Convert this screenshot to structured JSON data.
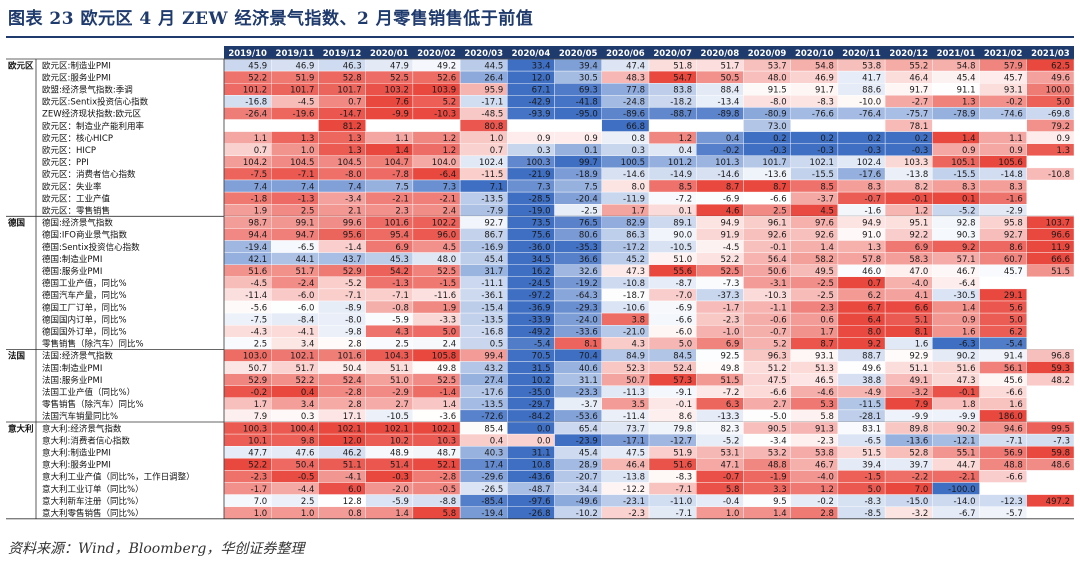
{
  "title": "图表 23   欧元区 4 月 ZEW 经济景气指数、2 月零售销售低于前值",
  "source": "资料来源：Wind，Bloomberg，华创证券整理",
  "colors": {
    "header": "#1f3a6d",
    "high": "#e9483f",
    "low": "#3f6fc3",
    "mid": "#ffffff"
  },
  "chart_data": {
    "type": "heatmap",
    "title": "欧元区 4 月 ZEW 经济景气指数、2 月零售销售低于前值",
    "columns": [
      "2019/10",
      "2019/11",
      "2019/12",
      "2020/01",
      "2020/02",
      "2020/03",
      "2020/04",
      "2020/05",
      "2020/06",
      "2020/07",
      "2020/08",
      "2020/09",
      "2020/10",
      "2020/11",
      "2020/12",
      "2021/01",
      "2021/02",
      "2021/03"
    ],
    "groups": [
      {
        "name": "欧元区",
        "rows": [
          {
            "label": "欧元区:制造业PMI",
            "values": [
              45.9,
              46.9,
              46.3,
              47.9,
              49.2,
              44.5,
              33.4,
              39.4,
              47.4,
              51.8,
              51.7,
              53.7,
              54.8,
              53.8,
              55.2,
              54.8,
              57.9,
              62.5
            ]
          },
          {
            "label": "欧元区:服务业PMI",
            "values": [
              52.2,
              51.9,
              52.8,
              52.5,
              52.6,
              26.4,
              12.0,
              30.5,
              48.3,
              54.7,
              50.5,
              48.0,
              46.9,
              41.7,
              46.4,
              45.4,
              45.7,
              49.6
            ]
          },
          {
            "label": "欧盟:经济景气指数:季调",
            "values": [
              101.2,
              101.7,
              101.7,
              103.2,
              103.9,
              95.9,
              67.1,
              69.3,
              77.8,
              83.8,
              88.4,
              91.5,
              91.7,
              88.6,
              91.7,
              91.1,
              93.1,
              100.0
            ]
          },
          {
            "label": "欧元区:Sentix投资信心指数",
            "values": [
              -16.8,
              -4.5,
              0.7,
              7.6,
              5.2,
              -17.1,
              -42.9,
              -41.8,
              -24.8,
              -18.2,
              -13.4,
              -8.0,
              -8.3,
              -10.0,
              -2.7,
              1.3,
              -0.2,
              5.0
            ]
          },
          {
            "label": "ZEW经济现状指数:欧元区",
            "values": [
              -26.4,
              -19.6,
              -14.7,
              -9.9,
              -10.3,
              -48.5,
              -93.9,
              -95.0,
              -89.6,
              -88.7,
              -89.8,
              -80.9,
              -76.6,
              -76.4,
              -75.7,
              -78.9,
              -74.6,
              -69.8
            ]
          },
          {
            "label": "欧元区：制造业产能利用率",
            "values": [
              null,
              null,
              81.2,
              null,
              null,
              80.8,
              null,
              null,
              66.8,
              null,
              null,
              73.0,
              null,
              null,
              78.1,
              null,
              null,
              79.2
            ]
          },
          {
            "label": "欧元区：核心HICP",
            "values": [
              1.1,
              1.3,
              1.3,
              1.1,
              1.2,
              1.0,
              0.9,
              0.9,
              0.8,
              1.2,
              0.4,
              0.2,
              0.2,
              0.2,
              0.2,
              1.4,
              1.1,
              0.9
            ]
          },
          {
            "label": "欧元区：HICP",
            "values": [
              0.7,
              1.0,
              1.3,
              1.4,
              1.2,
              0.7,
              0.3,
              0.1,
              0.3,
              0.4,
              -0.2,
              -0.3,
              -0.3,
              -0.3,
              -0.3,
              0.9,
              0.9,
              1.3
            ]
          },
          {
            "label": "欧元区：PPI",
            "values": [
              104.2,
              104.5,
              104.5,
              104.7,
              104.0,
              102.4,
              100.3,
              99.7,
              100.5,
              101.2,
              101.3,
              101.7,
              102.1,
              102.4,
              103.3,
              105.1,
              105.6,
              null
            ]
          },
          {
            "label": "欧元区：消费者信心指数",
            "values": [
              -7.5,
              -7.1,
              -8.0,
              -7.8,
              -6.4,
              -11.5,
              -21.9,
              -18.9,
              -14.6,
              -14.9,
              -14.6,
              -13.6,
              -15.5,
              -17.6,
              -13.8,
              -15.5,
              -14.8,
              -10.8
            ]
          },
          {
            "label": "欧元区：失业率",
            "values": [
              7.4,
              7.4,
              7.4,
              7.5,
              7.3,
              7.1,
              7.3,
              7.5,
              8.0,
              8.5,
              8.7,
              8.7,
              8.5,
              8.3,
              8.2,
              8.3,
              8.3,
              null
            ]
          },
          {
            "label": "欧元区：工业产值",
            "values": [
              -1.8,
              -1.3,
              -3.4,
              -2.1,
              -2.1,
              -13.5,
              -28.5,
              -20.4,
              -11.9,
              -7.2,
              -6.9,
              -6.6,
              -3.7,
              -0.7,
              -0.1,
              0.1,
              -1.6,
              null
            ]
          },
          {
            "label": "欧元区：零售销售",
            "values": [
              1.9,
              2.5,
              2.1,
              2.3,
              2.4,
              -7.9,
              -19.0,
              -2.5,
              1.7,
              0.1,
              4.6,
              2.5,
              4.5,
              -1.6,
              1.2,
              -5.2,
              -2.9,
              null
            ]
          }
        ]
      },
      {
        "name": "德国",
        "rows": [
          {
            "label": "德国:经济景气指数",
            "values": [
              98.7,
              99.1,
              99.6,
              101.6,
              102.2,
              92.7,
              73.5,
              76.5,
              82.9,
              89.1,
              94.9,
              96.1,
              97.6,
              94.9,
              95.1,
              92.8,
              95.8,
              103.7
            ]
          },
          {
            "label": "德国:IFO商业景气指数",
            "values": [
              94.4,
              94.7,
              95.6,
              95.4,
              96.0,
              86.7,
              75.6,
              80.6,
              86.3,
              90.0,
              91.9,
              92.6,
              92.6,
              91.0,
              92.2,
              90.3,
              92.7,
              96.6
            ]
          },
          {
            "label": "德国:Sentix投资信心指数",
            "values": [
              -19.4,
              -6.5,
              -1.4,
              6.9,
              4.5,
              -16.9,
              -36.0,
              -35.3,
              -17.2,
              -10.5,
              -4.5,
              -0.1,
              1.4,
              1.3,
              6.9,
              9.2,
              8.6,
              11.9
            ]
          },
          {
            "label": "德国:制造业PMI",
            "values": [
              42.1,
              44.1,
              43.7,
              45.3,
              48.0,
              45.4,
              34.5,
              36.6,
              45.2,
              51.0,
              52.2,
              56.4,
              58.2,
              57.8,
              58.3,
              57.1,
              60.7,
              66.6
            ]
          },
          {
            "label": "德国:服务业PMI",
            "values": [
              51.6,
              51.7,
              52.9,
              54.2,
              52.5,
              31.7,
              16.2,
              32.6,
              47.3,
              55.6,
              52.5,
              50.6,
              49.5,
              46.0,
              47.0,
              46.7,
              45.7,
              51.5
            ]
          },
          {
            "label": "德国工业产值，同比%",
            "values": [
              -4.5,
              -2.4,
              -5.2,
              -1.3,
              -1.5,
              -11.1,
              -24.5,
              -19.2,
              -10.8,
              -8.7,
              -7.3,
              -3.1,
              -2.5,
              0.7,
              -4.0,
              -6.4,
              null,
              null
            ]
          },
          {
            "label": "德国汽车产量，同比%",
            "values": [
              -11.4,
              -6.0,
              -7.1,
              -7.1,
              -11.6,
              -36.1,
              -97.2,
              -64.3,
              -18.7,
              -7.0,
              -37.3,
              -10.3,
              -2.5,
              6.2,
              4.1,
              -30.5,
              29.1,
              null
            ]
          },
          {
            "label": "德国工厂订单，同比%",
            "values": [
              -5.6,
              -6.0,
              -8.9,
              -0.8,
              1.9,
              -15.4,
              -36.9,
              -29.3,
              -10.6,
              -6.9,
              -1.7,
              -1.1,
              2.3,
              6.7,
              6.6,
              1.4,
              5.6,
              null
            ]
          },
          {
            "label": "德国国内订单，同比%",
            "values": [
              -7.5,
              -8.4,
              -8.0,
              -5.9,
              -3.3,
              -13.5,
              -33.9,
              -24.0,
              3.8,
              -6.6,
              -2.3,
              -0.6,
              0.6,
              6.4,
              5.1,
              0.9,
              5.0,
              null
            ]
          },
          {
            "label": "德国国外订单，同比%",
            "values": [
              -4.3,
              -4.1,
              -9.8,
              4.3,
              5.0,
              -16.8,
              -49.2,
              -33.6,
              -21.0,
              -6.0,
              -1.0,
              -0.7,
              1.7,
              8.0,
              8.1,
              1.6,
              6.2,
              null
            ]
          },
          {
            "label": "零售销售（除汽车）同比%",
            "values": [
              2.5,
              3.4,
              2.8,
              2.5,
              2.4,
              0.5,
              -5.4,
              8.1,
              4.3,
              5.0,
              6.9,
              5.2,
              8.7,
              9.2,
              1.6,
              -6.3,
              -5.4,
              null
            ]
          }
        ]
      },
      {
        "name": "法国",
        "rows": [
          {
            "label": "法国:经济景气指数",
            "values": [
              103.0,
              102.1,
              101.6,
              104.3,
              105.8,
              99.4,
              70.5,
              70.4,
              84.9,
              84.5,
              92.5,
              96.3,
              93.1,
              88.7,
              92.9,
              90.2,
              91.4,
              96.8
            ]
          },
          {
            "label": "法国:制造业PMI",
            "values": [
              50.7,
              51.7,
              50.4,
              51.1,
              49.8,
              43.2,
              31.5,
              40.6,
              52.3,
              52.4,
              49.8,
              51.2,
              51.3,
              49.6,
              51.1,
              51.6,
              56.1,
              59.3
            ]
          },
          {
            "label": "法国:服务业PMI",
            "values": [
              52.9,
              52.2,
              52.4,
              51.0,
              52.5,
              27.4,
              10.2,
              31.1,
              50.7,
              57.3,
              51.5,
              47.5,
              46.5,
              38.8,
              49.1,
              47.3,
              45.6,
              48.2
            ]
          },
          {
            "label": "法国工业产值（同比%）",
            "values": [
              -0.2,
              0.4,
              -2.8,
              -2.9,
              -1.4,
              -17.6,
              -35.0,
              -23.3,
              -11.3,
              -9.1,
              -7.2,
              -6.6,
              -4.6,
              -4.9,
              -3.2,
              -0.1,
              -6.6,
              null
            ]
          },
          {
            "label": "零售销售（除汽车）同比%",
            "values": [
              1.7,
              3.4,
              2.8,
              2.7,
              1.4,
              -13.5,
              -29.7,
              -3.7,
              3.5,
              -0.1,
              6.3,
              2.7,
              5.3,
              -11.5,
              7.9,
              1.8,
              1.6,
              null
            ]
          },
          {
            "label": "法国汽车销量同比%",
            "values": [
              7.9,
              0.3,
              17.1,
              -10.5,
              -3.6,
              -72.6,
              -84.2,
              -53.6,
              -11.4,
              8.6,
              -13.3,
              -5.0,
              5.8,
              -28.1,
              -9.9,
              -9.9,
              186.0,
              null
            ]
          }
        ]
      },
      {
        "name": "意大利",
        "rows": [
          {
            "label": "意大利:经济景气指数",
            "values": [
              100.3,
              100.4,
              102.1,
              102.1,
              102.1,
              85.4,
              0.0,
              65.4,
              73.7,
              79.8,
              82.3,
              90.5,
              91.3,
              83.1,
              89.8,
              90.2,
              94.6,
              99.5
            ]
          },
          {
            "label": "意大利:消费者信心指数",
            "values": [
              10.1,
              9.8,
              12.0,
              10.2,
              10.3,
              0.4,
              0.0,
              -23.9,
              -17.1,
              -12.7,
              -5.2,
              -3.4,
              -2.3,
              -6.5,
              -13.6,
              -12.1,
              -7.1,
              -7.3
            ]
          },
          {
            "label": "意大利:制造业PMI",
            "values": [
              47.7,
              47.6,
              46.2,
              48.9,
              48.7,
              40.3,
              31.1,
              45.4,
              47.5,
              51.9,
              53.1,
              53.2,
              53.8,
              51.5,
              52.8,
              55.1,
              56.9,
              59.8
            ]
          },
          {
            "label": "意大利:服务业PMI",
            "values": [
              52.2,
              50.4,
              51.1,
              51.4,
              52.1,
              17.4,
              10.8,
              28.9,
              46.4,
              51.6,
              47.1,
              48.8,
              46.7,
              39.4,
              39.7,
              44.7,
              48.8,
              48.6
            ]
          },
          {
            "label": "意大利工业产值（同比%，工作日调整）",
            "values": [
              -2.3,
              -0.5,
              -4.1,
              -0.3,
              -2.8,
              -29.6,
              -43.6,
              -20.7,
              -13.8,
              -8.3,
              -0.7,
              -1.9,
              -4.0,
              -1.5,
              -2.2,
              -2.1,
              -6.6,
              null
            ]
          },
          {
            "label": "意大利工业订单（同比%）",
            "values": [
              -1.7,
              -4.4,
              6.0,
              -2.0,
              -0.5,
              -26.5,
              -48.7,
              -34.4,
              -12.2,
              -7.1,
              5.8,
              3.3,
              1.2,
              5.0,
              7.0,
              -100.0,
              null,
              null
            ]
          },
          {
            "label": "意大利新车注册（同比%）",
            "values": [
              7.0,
              2.5,
              12.8,
              -5.9,
              -8.8,
              -85.4,
              -97.6,
              -49.6,
              -23.1,
              -11.0,
              -0.4,
              9.5,
              -0.2,
              -8.3,
              -15.0,
              -14.0,
              -12.3,
              497.2
            ]
          },
          {
            "label": "意大利零售销售（同比%）",
            "values": [
              1.0,
              1.0,
              0.8,
              1.4,
              5.8,
              -19.4,
              -26.8,
              -10.2,
              -2.3,
              -7.1,
              1.0,
              1.4,
              2.8,
              -8.5,
              -3.2,
              -6.7,
              -5.7,
              null
            ]
          }
        ]
      }
    ]
  }
}
